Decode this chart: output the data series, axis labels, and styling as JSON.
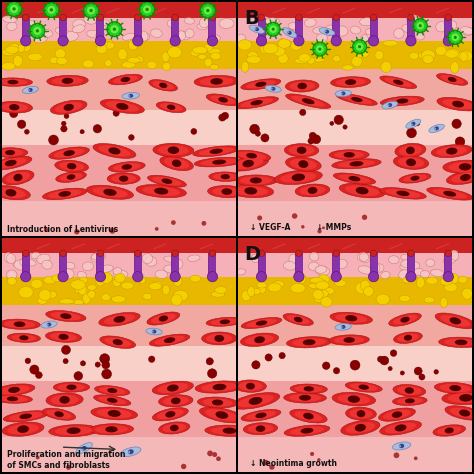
{
  "panel_labels": [
    "",
    "B",
    "",
    "D"
  ],
  "panel_annotations": [
    "Introduction of Lentivirus",
    "↓ VEGF-A          ↓ MMPs",
    "Proliferation and migration\nof SMCs and fibroblasts",
    "↓ Neointima growth"
  ],
  "colors": {
    "bg_outer": "#f0a0a0",
    "top_red_bar": "#cc2222",
    "adventitia_pink": "#f5b8b8",
    "adventitia_cell_border": "#cc6666",
    "adventitia_cell_fill": "#f5c8c8",
    "yellow_fat_bg": "#f0c800",
    "yellow_fat_cell": "#f8d800",
    "yellow_fat_border": "#c8a000",
    "media_pink": "#f0a0a8",
    "media_outer_pink": "#f5c0b8",
    "intima_light": "#f5d0c8",
    "intima_dot_dark": "#880000",
    "smooth_muscle_fill": "#dd2222",
    "smooth_muscle_edge": "#aa1111",
    "smooth_muscle_nucleus": "#550000",
    "bottom_pink": "#f5b8b8",
    "border_black": "#000000",
    "purple_vessel": "#8833aa",
    "purple_vessel_dark": "#661188",
    "green_virus": "#22cc22",
    "green_virus_light": "#66ee44",
    "green_virus_dark": "#118800",
    "blue_cell_fill": "#aabbdd",
    "blue_cell_edge": "#6688bb",
    "blue_cell_nucleus": "#334488",
    "arrow_color": "#111111",
    "text_color": "#111111",
    "label_color": "#111111"
  }
}
